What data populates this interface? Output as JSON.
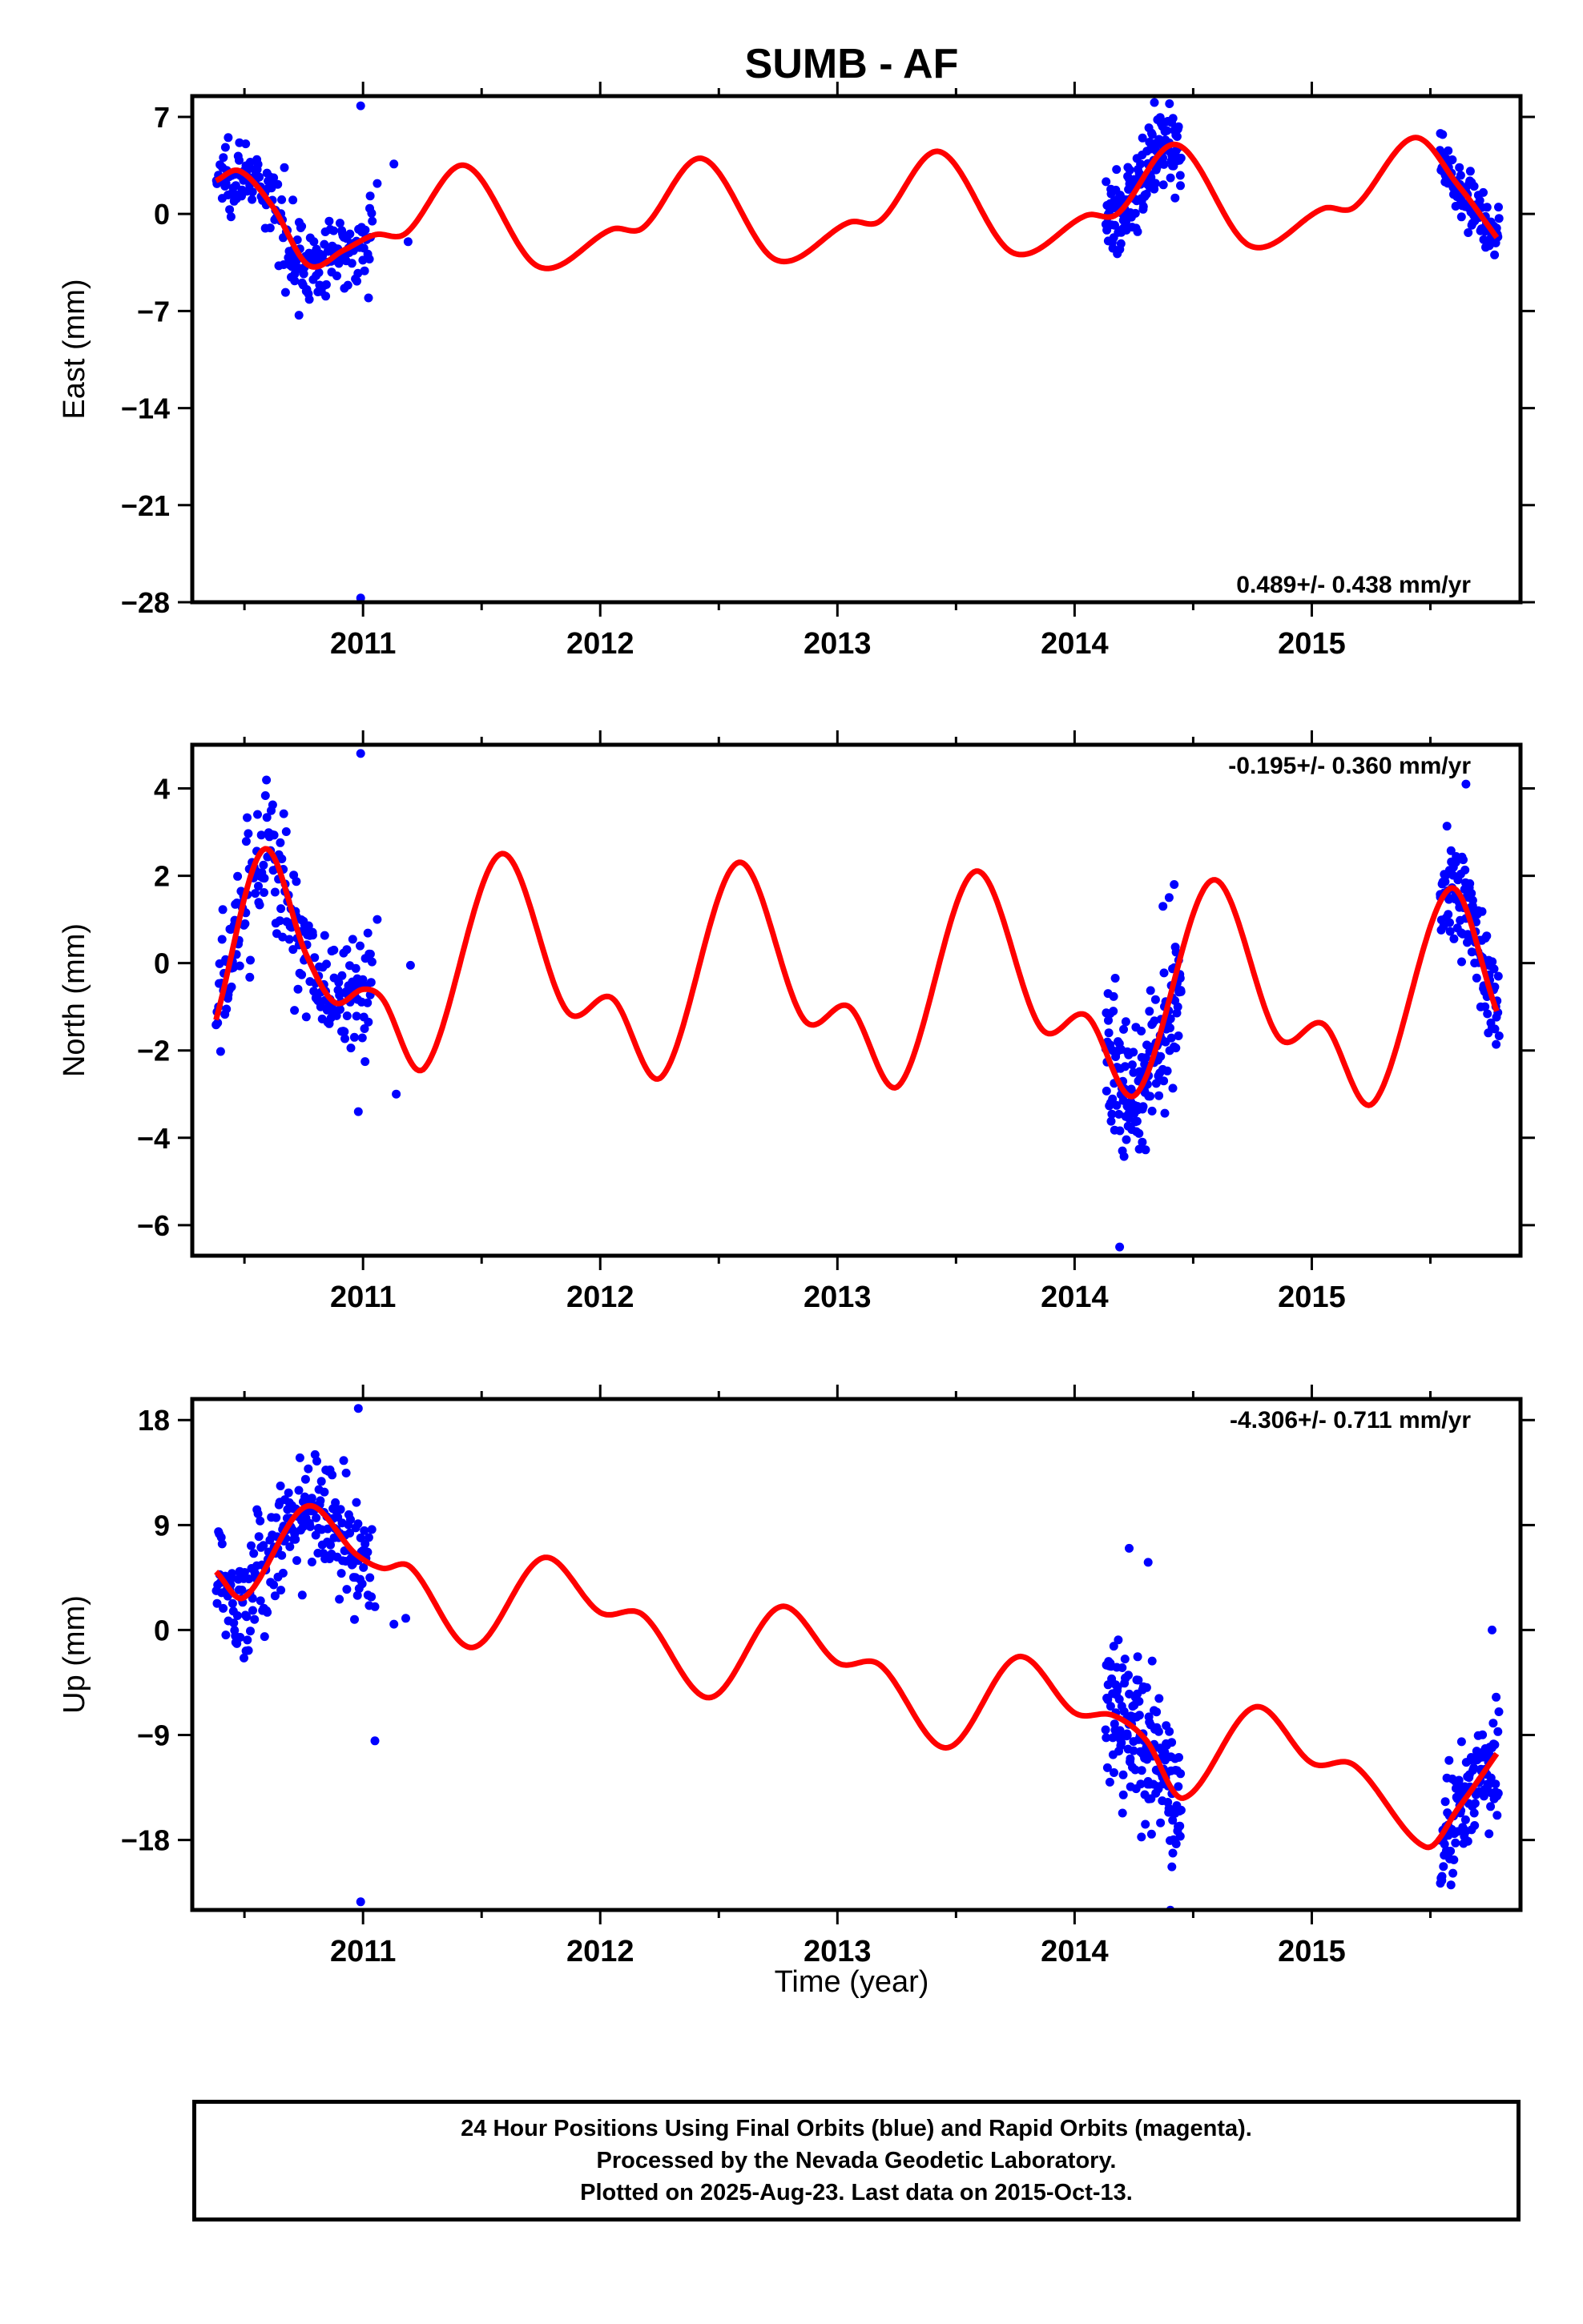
{
  "title": "SUMB - AF",
  "xlabel": "Time (year)",
  "footer": {
    "line1": "24 Hour Positions Using Final Orbits (blue) and Rapid Orbits (magenta).",
    "line2": "Processed by the Nevada Geodetic Laboratory.",
    "line3": "Plotted on 2025-Aug-23. Last data on 2015-Oct-13."
  },
  "colors": {
    "observations": "#0000ff",
    "model": "#ff0000",
    "axes": "#000000"
  },
  "chart_data": [
    {
      "type": "scatter",
      "component": "East",
      "ylabel": "East (mm)",
      "rate_label": "0.489+/- 0.438 mm/yr",
      "rate_label_position": "bottom-right",
      "xlim": [
        2010.28,
        2015.88
      ],
      "ylim": [
        -28,
        8.5
      ],
      "xticks": [
        2011,
        2012,
        2013,
        2014,
        2015
      ],
      "yticks": [
        7,
        0,
        -7,
        -14,
        -21,
        -28
      ],
      "segments": [
        {
          "from": 2010.38,
          "to": 2011.04,
          "points": 220,
          "spread": 1.3
        },
        {
          "from": 2014.13,
          "to": 2014.45,
          "points": 160,
          "spread": 1.4
        },
        {
          "from": 2015.54,
          "to": 2015.79,
          "points": 110,
          "spread": 0.9
        }
      ],
      "outliers": [
        [
          2010.99,
          7.8
        ],
        [
          2010.99,
          -27.7
        ],
        [
          2011.03,
          1.3
        ],
        [
          2011.06,
          2.2
        ],
        [
          2011.13,
          3.6
        ],
        [
          2011.19,
          -2.0
        ],
        [
          2010.73,
          -7.3
        ]
      ],
      "model": {
        "start_value": 2.4,
        "knots": [
          [
            2010.38,
            2.4
          ],
          [
            2010.48,
            3.1
          ],
          [
            2010.62,
            0.5
          ],
          [
            2010.77,
            -3.7
          ],
          [
            2010.92,
            -2.6
          ],
          [
            2011.05,
            -1.5
          ],
          [
            2011.18,
            -1.4
          ],
          [
            2011.43,
            3.5
          ],
          [
            2011.74,
            -3.8
          ],
          [
            2012.05,
            -1.1
          ],
          [
            2012.18,
            -1.0
          ],
          [
            2012.43,
            4.0
          ],
          [
            2012.74,
            -3.3
          ],
          [
            2013.05,
            -0.6
          ],
          [
            2013.18,
            -0.5
          ],
          [
            2013.43,
            4.5
          ],
          [
            2013.74,
            -2.8
          ],
          [
            2014.05,
            -0.1
          ],
          [
            2014.18,
            0.0
          ],
          [
            2014.43,
            5.0
          ],
          [
            2014.74,
            -2.3
          ],
          [
            2015.05,
            0.4
          ],
          [
            2015.18,
            0.5
          ],
          [
            2015.43,
            5.5
          ],
          [
            2015.62,
            2.0
          ],
          [
            2015.78,
            -1.7
          ]
        ]
      }
    },
    {
      "type": "scatter",
      "component": "North",
      "ylabel": "North (mm)",
      "rate_label": "-0.195+/- 0.360 mm/yr",
      "rate_label_position": "top-right",
      "xlim": [
        2010.28,
        2015.88
      ],
      "ylim": [
        -6.7,
        5.0
      ],
      "xticks": [
        2011,
        2012,
        2013,
        2014,
        2015
      ],
      "yticks": [
        4,
        2,
        0,
        -2,
        -4,
        -6
      ],
      "segments": [
        {
          "from": 2010.38,
          "to": 2011.04,
          "points": 220,
          "spread": 0.75
        },
        {
          "from": 2014.13,
          "to": 2014.45,
          "points": 160,
          "spread": 1.0
        },
        {
          "from": 2015.54,
          "to": 2015.79,
          "points": 110,
          "spread": 0.6
        }
      ],
      "outliers": [
        [
          2010.99,
          4.8
        ],
        [
          2011.14,
          -3.0
        ],
        [
          2011.2,
          -0.05
        ],
        [
          2011.06,
          1.0
        ],
        [
          2010.98,
          -3.4
        ],
        [
          2014.19,
          -6.5
        ],
        [
          2015.65,
          4.1
        ],
        [
          2014.42,
          1.8
        ]
      ],
      "model": {
        "start_value": -1.3,
        "knots": [
          [
            2010.38,
            -1.3
          ],
          [
            2010.58,
            2.6
          ],
          [
            2010.76,
            0.2
          ],
          [
            2010.88,
            -0.9
          ],
          [
            2011.0,
            -0.6
          ],
          [
            2011.08,
            -0.8
          ],
          [
            2011.26,
            -2.4
          ],
          [
            2011.58,
            2.5
          ],
          [
            2011.86,
            -1.1
          ],
          [
            2012.05,
            -0.8
          ],
          [
            2012.26,
            -2.6
          ],
          [
            2012.58,
            2.3
          ],
          [
            2012.86,
            -1.3
          ],
          [
            2013.05,
            -1.0
          ],
          [
            2013.26,
            -2.8
          ],
          [
            2013.58,
            2.1
          ],
          [
            2013.86,
            -1.5
          ],
          [
            2014.05,
            -1.2
          ],
          [
            2014.26,
            -3.0
          ],
          [
            2014.58,
            1.9
          ],
          [
            2014.86,
            -1.7
          ],
          [
            2015.05,
            -1.4
          ],
          [
            2015.26,
            -3.2
          ],
          [
            2015.58,
            1.7
          ],
          [
            2015.78,
            -1.1
          ]
        ]
      }
    },
    {
      "type": "scatter",
      "component": "Up",
      "ylabel": "Up (mm)",
      "rate_label": "-4.306+/- 0.711 mm/yr",
      "rate_label_position": "top-right",
      "xlim": [
        2010.28,
        2015.88
      ],
      "ylim": [
        -24,
        19.8
      ],
      "xticks": [
        2011,
        2012,
        2013,
        2014,
        2015
      ],
      "yticks": [
        18,
        9,
        0,
        -9,
        -18
      ],
      "segments": [
        {
          "from": 2010.38,
          "to": 2011.04,
          "points": 230,
          "spread": 2.6
        },
        {
          "from": 2014.13,
          "to": 2014.45,
          "points": 170,
          "spread": 3.2
        },
        {
          "from": 2015.54,
          "to": 2015.79,
          "points": 115,
          "spread": 2.4
        }
      ],
      "outliers": [
        [
          2010.98,
          19.0
        ],
        [
          2010.99,
          -23.3
        ],
        [
          2011.05,
          -9.5
        ],
        [
          2011.13,
          0.5
        ],
        [
          2011.18,
          1.0
        ],
        [
          2011.05,
          2.0
        ],
        [
          2014.23,
          7.0
        ],
        [
          2014.31,
          5.8
        ],
        [
          2014.41,
          -20.3
        ],
        [
          2015.64,
          -18.3
        ],
        [
          2015.76,
          0.0
        ]
      ],
      "model": {
        "start_value": 5.0,
        "knots": [
          [
            2010.38,
            5.0
          ],
          [
            2010.5,
            2.8
          ],
          [
            2010.76,
            10.6
          ],
          [
            2010.97,
            6.5
          ],
          [
            2011.08,
            5.3
          ],
          [
            2011.2,
            5.4
          ],
          [
            2011.46,
            -1.5
          ],
          [
            2011.76,
            6.2
          ],
          [
            2012.0,
            1.5
          ],
          [
            2012.18,
            1.3
          ],
          [
            2012.46,
            -5.8
          ],
          [
            2012.76,
            2.0
          ],
          [
            2013.0,
            -2.8
          ],
          [
            2013.18,
            -3.0
          ],
          [
            2013.46,
            -10.1
          ],
          [
            2013.76,
            -2.3
          ],
          [
            2014.0,
            -7.1
          ],
          [
            2014.16,
            -7.3
          ],
          [
            2014.3,
            -9.4
          ],
          [
            2014.46,
            -14.4
          ],
          [
            2014.76,
            -6.6
          ],
          [
            2015.0,
            -11.4
          ],
          [
            2015.18,
            -11.6
          ],
          [
            2015.48,
            -18.6
          ],
          [
            2015.62,
            -15.2
          ],
          [
            2015.78,
            -10.6
          ]
        ]
      }
    }
  ]
}
